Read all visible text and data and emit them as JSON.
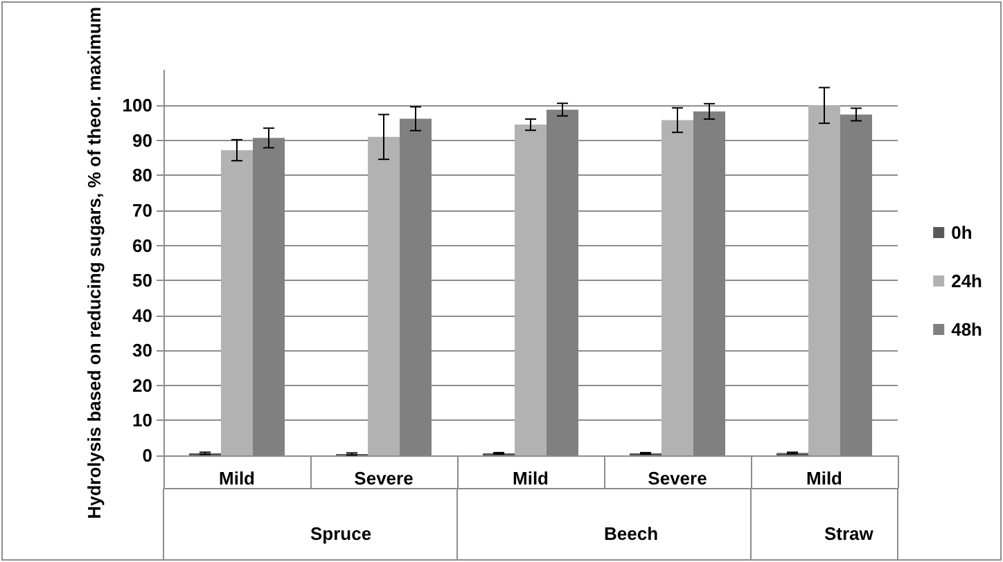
{
  "chart_data": {
    "type": "bar",
    "ylabel": "Hydrolysis based on reducing sugars, % of theor. maximum",
    "categories": [
      "Mild",
      "Severe",
      "Mild",
      "Severe",
      "Mild"
    ],
    "annotations": [
      "Spruce",
      "Beech",
      "Straw"
    ],
    "series": [
      {
        "name": "0h",
        "color": "#595959",
        "values": [
          0.6,
          0.4,
          0.6,
          0.6,
          0.7
        ],
        "errors": [
          0.3,
          0.3,
          0.2,
          0.2,
          0.2
        ]
      },
      {
        "name": "24h",
        "color": "#b2b2b2",
        "values": [
          87.2,
          91.0,
          94.5,
          95.8,
          100
        ],
        "errors": [
          3,
          6.4,
          1.6,
          3.5,
          5.1
        ]
      },
      {
        "name": "48h",
        "color": "#808080",
        "values": [
          90.7,
          96.2,
          98.8,
          98.3,
          97.4
        ],
        "errors": [
          2.8,
          3.4,
          1.8,
          2.2,
          1.8
        ]
      }
    ],
    "ylim": [
      0,
      110
    ],
    "yticks": [
      0,
      10,
      20,
      30,
      40,
      50,
      60,
      70,
      80,
      90,
      100
    ],
    "grid": "y",
    "legend": "right"
  }
}
